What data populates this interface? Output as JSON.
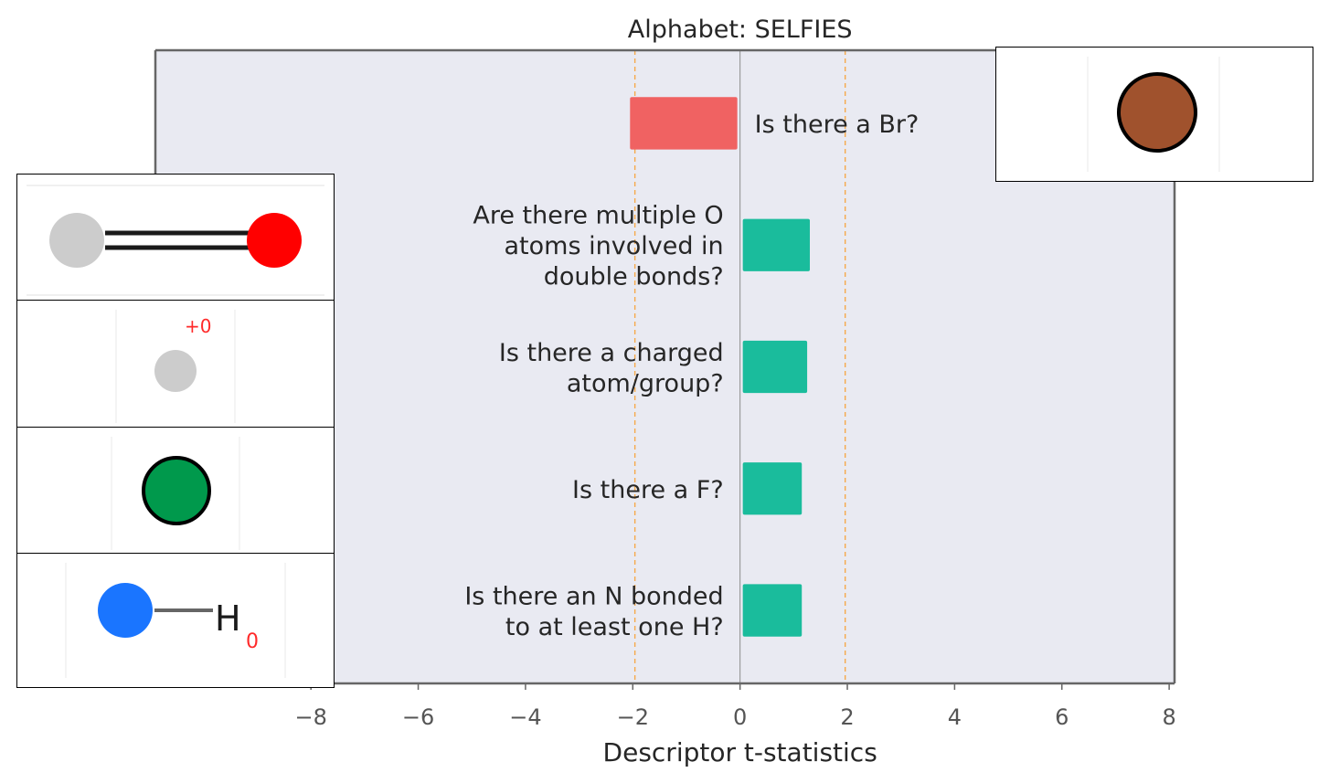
{
  "chart_data": {
    "type": "bar",
    "orientation": "horizontal",
    "title": "Alphabet: SELFIES",
    "xlabel": "Descriptor t-statistics",
    "xlim": [
      -10.9,
      8.1
    ],
    "xticks": [
      -8,
      -6,
      -4,
      -2,
      0,
      2,
      4,
      6,
      8
    ],
    "xtick_labels": [
      "−8",
      "−6",
      "−4",
      "−2",
      "0",
      "2",
      "4",
      "6",
      "8"
    ],
    "significance_lines": [
      -1.96,
      1.96
    ],
    "categories": [
      "Is there a Br?",
      "Are there multiple O\natoms involved in\ndouble bonds?",
      "Is there a charged\natom/group?",
      "Is there a F?",
      "Is there an N bonded\nto at least one H?"
    ],
    "values": [
      -2.0,
      1.25,
      1.2,
      1.1,
      1.1
    ],
    "grid": false,
    "legend": "none"
  },
  "colors": {
    "negative": "#f06262",
    "positive": "#1abc9c",
    "plot_background": "#e9eaf2",
    "significance_line": "#f6a94a",
    "zero_line": "#8c8c8c",
    "axis": "#666666"
  },
  "insets": {
    "br_atom": {
      "color": "#a0522d"
    },
    "co_double_bond": {
      "left_color": "#cccccc",
      "right_color": "#ff0000"
    },
    "charged_atom": {
      "label": "+0",
      "atom_color": "#cccccc"
    },
    "f_atom": {
      "color": "#00994c"
    },
    "nh_group": {
      "n_color": "#1a75ff",
      "h_label": "H",
      "h_charge": "0"
    }
  }
}
